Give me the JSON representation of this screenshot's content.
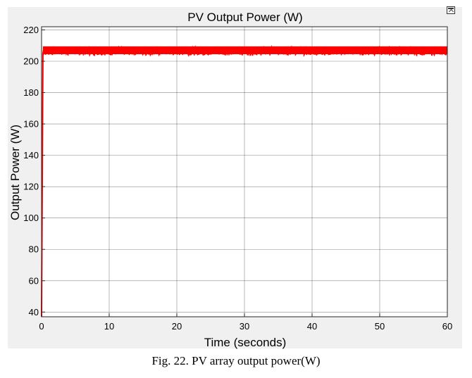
{
  "caption": "Fig. 22. PV array output power(W)",
  "colors": {
    "series": "#ff0000",
    "panel": "#f0f0f0",
    "plot_bg": "#ffffff",
    "grid": "#262626",
    "axis": "#262626",
    "text": "#000000"
  },
  "icons": {
    "corner": "undock-figure-icon"
  },
  "chart_data": {
    "type": "line",
    "title": "PV Output Power (W)",
    "xlabel": "Time (seconds)",
    "ylabel": "Output Power (W)",
    "xlim": [
      0,
      60
    ],
    "ylim": [
      37,
      222
    ],
    "xticks": [
      0,
      10,
      20,
      30,
      40,
      50,
      60
    ],
    "yticks": [
      40,
      60,
      80,
      100,
      120,
      140,
      160,
      180,
      200,
      220
    ],
    "grid": true,
    "legend": "none",
    "series": [
      {
        "x": [
          0,
          0.1,
          0.2,
          0.3,
          0.5,
          1,
          2,
          3,
          4,
          5,
          6,
          7,
          8,
          9,
          10,
          11,
          12,
          13,
          14,
          15,
          16,
          17,
          18,
          19,
          20,
          21,
          22,
          23,
          24,
          25,
          26,
          27,
          28,
          29,
          30,
          31,
          32,
          33,
          34,
          35,
          36,
          37,
          38,
          39,
          40,
          41,
          42,
          43,
          44,
          45,
          46,
          47,
          48,
          49,
          50,
          51,
          52,
          53,
          54,
          55,
          56,
          57,
          58,
          59,
          60
        ],
        "y": [
          37,
          120,
          205,
          207,
          207,
          207,
          207,
          207,
          207,
          207,
          206,
          207,
          207,
          207,
          207,
          207,
          208,
          207,
          207,
          207,
          207,
          207,
          207,
          207,
          207,
          207,
          207,
          207,
          207,
          207,
          207,
          207,
          207,
          208,
          207,
          207,
          207,
          207,
          207,
          207,
          207,
          206,
          207,
          207,
          207,
          206,
          207,
          207,
          207,
          207,
          207,
          207,
          207,
          207,
          207,
          207,
          207,
          207,
          207,
          207,
          207,
          207,
          207,
          207,
          207
        ],
        "band_min": 203,
        "band_max": 210
      }
    ]
  }
}
